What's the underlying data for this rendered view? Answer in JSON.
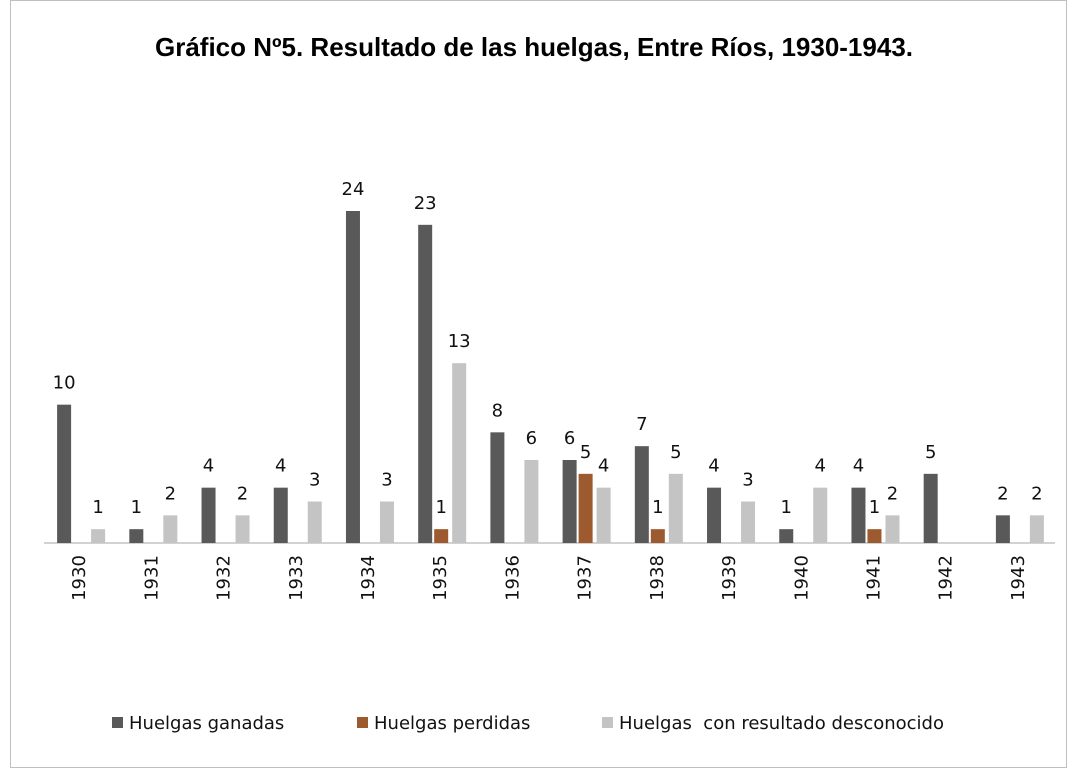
{
  "chart_data": {
    "type": "bar",
    "title": "Gráfico Nº5. Resultado de las huelgas, Entre Ríos, 1930-1943.",
    "categories": [
      "1930",
      "1931",
      "1932",
      "1933",
      "1934",
      "1935",
      "1936",
      "1937",
      "1938",
      "1939",
      "1940",
      "1941",
      "1942",
      "1943"
    ],
    "ylim": [
      0,
      24
    ],
    "legend": "bottom",
    "series": [
      {
        "name": "Huelgas ganadas",
        "color": "#595959",
        "values": [
          10,
          1,
          4,
          4,
          24,
          23,
          8,
          6,
          7,
          4,
          1,
          4,
          5,
          2
        ]
      },
      {
        "name": "Huelgas perdidas",
        "color": "#9c5a2e",
        "values": [
          null,
          null,
          null,
          null,
          null,
          1,
          null,
          5,
          1,
          null,
          null,
          1,
          null,
          null
        ]
      },
      {
        "name": "Huelgas  con resultado desconocido",
        "color": "#c4c4c4",
        "values": [
          1,
          2,
          2,
          3,
          3,
          13,
          6,
          4,
          5,
          3,
          4,
          2,
          null,
          2
        ]
      }
    ]
  }
}
